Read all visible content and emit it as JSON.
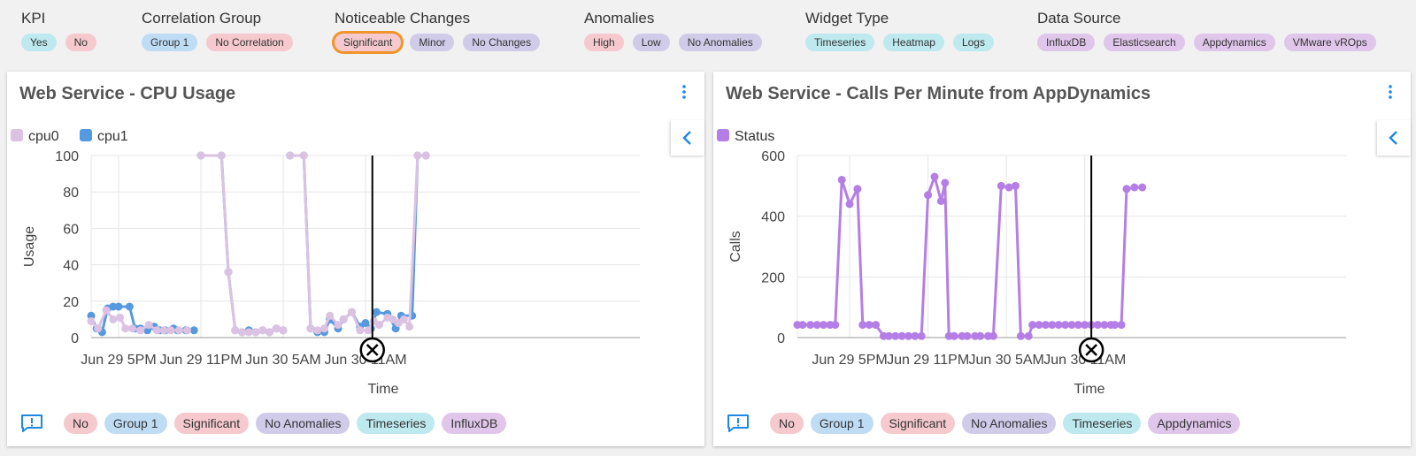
{
  "filters": [
    {
      "title": "KPI",
      "chips": [
        {
          "label": "Yes",
          "color": "cyan"
        },
        {
          "label": "No",
          "color": "pink"
        }
      ]
    },
    {
      "title": "Correlation Group",
      "chips": [
        {
          "label": "Group 1",
          "color": "blue"
        },
        {
          "label": "No Correlation",
          "color": "pink"
        }
      ]
    },
    {
      "title": "Noticeable Changes",
      "chips": [
        {
          "label": "Significant",
          "color": "pink",
          "selected": true
        },
        {
          "label": "Minor",
          "color": "purple"
        },
        {
          "label": "No Changes",
          "color": "purple"
        }
      ]
    },
    {
      "title": "Anomalies",
      "chips": [
        {
          "label": "High",
          "color": "pink"
        },
        {
          "label": "Low",
          "color": "purple"
        },
        {
          "label": "No Anomalies",
          "color": "purple"
        }
      ]
    },
    {
      "title": "Widget Type",
      "chips": [
        {
          "label": "Timeseries",
          "color": "cyan"
        },
        {
          "label": "Heatmap",
          "color": "cyan"
        },
        {
          "label": "Logs",
          "color": "cyan"
        }
      ]
    },
    {
      "title": "Data Source",
      "chips": [
        {
          "label": "InfluxDB",
          "color": "violet"
        },
        {
          "label": "Elasticsearch",
          "color": "violet"
        },
        {
          "label": "Appdynamics",
          "color": "violet"
        },
        {
          "label": "VMware vROps",
          "color": "violet"
        }
      ]
    }
  ],
  "widgets": [
    {
      "title": "Web Service - CPU Usage",
      "tags": [
        {
          "label": "No",
          "color": "pink"
        },
        {
          "label": "Group 1",
          "color": "blue"
        },
        {
          "label": "Significant",
          "color": "pink"
        },
        {
          "label": "No Anomalies",
          "color": "purple"
        },
        {
          "label": "Timeseries",
          "color": "cyan"
        },
        {
          "label": "InfluxDB",
          "color": "violet"
        }
      ],
      "chart_data": {
        "type": "line",
        "xlabel": "Time",
        "ylabel": "Usage",
        "ylim": [
          0,
          100
        ],
        "yticks": [
          0,
          20,
          40,
          60,
          80,
          100
        ],
        "xlim": [
          15,
          55
        ],
        "xticks": [
          {
            "x": 17,
            "label": "Jun 29 5PM"
          },
          {
            "x": 23,
            "label": "Jun 29 11PM"
          },
          {
            "x": 29,
            "label": "Jun 30 5AM"
          },
          {
            "x": 35,
            "label": "Jun 30 11AM"
          }
        ],
        "crosshair_x": 35.5,
        "legend": "top-left",
        "series": [
          {
            "name": "cpu1",
            "color": "#5599e0",
            "points": [
              [
                15,
                12
              ],
              [
                15.4,
                5
              ],
              [
                15.8,
                3
              ],
              [
                16.2,
                16
              ],
              [
                16.6,
                17
              ],
              [
                17,
                17
              ],
              [
                17.8,
                17
              ],
              [
                18.2,
                5
              ],
              [
                18.6,
                5
              ],
              [
                19.1,
                4
              ],
              [
                19.6,
                6
              ],
              [
                20,
                4
              ],
              [
                20.4,
                4
              ],
              [
                21,
                5
              ],
              [
                21.3,
                4
              ],
              [
                21.9,
                4
              ],
              [
                22.5,
                4
              ],
              [
                null,
                null
              ],
              [
                23,
                100
              ],
              [
                24.5,
                100
              ],
              [
                25,
                36
              ],
              [
                25.5,
                4
              ],
              [
                26,
                3
              ],
              [
                26.5,
                4
              ],
              [
                27,
                3
              ],
              [
                27.5,
                4
              ],
              [
                28,
                3
              ],
              [
                28.5,
                5
              ],
              [
                29,
                4
              ],
              [
                null,
                null
              ],
              [
                29.5,
                100
              ],
              [
                30.5,
                100
              ],
              [
                31,
                5
              ],
              [
                31.5,
                3
              ],
              [
                32,
                3
              ],
              [
                32.4,
                10
              ],
              [
                33,
                5
              ],
              [
                33.4,
                10
              ],
              [
                34,
                14
              ],
              [
                34.6,
                6
              ],
              [
                35,
                8
              ],
              [
                35.4,
                5
              ],
              [
                35.8,
                14
              ],
              [
                36.6,
                13
              ],
              [
                37.2,
                5
              ],
              [
                37.6,
                12
              ],
              [
                38.4,
                12
              ],
              [
                38.8,
                100
              ],
              [
                39.4,
                100
              ]
            ]
          },
          {
            "name": "cpu0",
            "color": "#dbc2e3",
            "points": [
              [
                15,
                9
              ],
              [
                15.5,
                5
              ],
              [
                16.1,
                15
              ],
              [
                16.6,
                10
              ],
              [
                17.1,
                11
              ],
              [
                17.5,
                5
              ],
              [
                18,
                5
              ],
              [
                18.6,
                4
              ],
              [
                19.2,
                7
              ],
              [
                19.8,
                4
              ],
              [
                20.3,
                4
              ],
              [
                20.8,
                4
              ],
              [
                21.4,
                4
              ],
              [
                22,
                4
              ],
              [
                null,
                null
              ],
              [
                23,
                100
              ],
              [
                24.5,
                100
              ],
              [
                25,
                36
              ],
              [
                25.5,
                4
              ],
              [
                26,
                3
              ],
              [
                26.5,
                3
              ],
              [
                27,
                3
              ],
              [
                27.5,
                4
              ],
              [
                28,
                3
              ],
              [
                28.5,
                5
              ],
              [
                29,
                4
              ],
              [
                null,
                null
              ],
              [
                29.5,
                100
              ],
              [
                30.5,
                100
              ],
              [
                31,
                5
              ],
              [
                31.5,
                4
              ],
              [
                32,
                5
              ],
              [
                32.4,
                12
              ],
              [
                33,
                7
              ],
              [
                33.4,
                10
              ],
              [
                34,
                14
              ],
              [
                34.6,
                4
              ],
              [
                35.2,
                4
              ],
              [
                35.6,
                9
              ],
              [
                36,
                7
              ],
              [
                36.6,
                11
              ],
              [
                37,
                10
              ],
              [
                37.4,
                8
              ],
              [
                37.8,
                10
              ],
              [
                38.2,
                6
              ],
              [
                38.8,
                100
              ],
              [
                39.4,
                100
              ]
            ]
          }
        ]
      }
    },
    {
      "title": "Web Service - Calls Per Minute from AppDynamics",
      "tags": [
        {
          "label": "No",
          "color": "pink"
        },
        {
          "label": "Group 1",
          "color": "blue"
        },
        {
          "label": "Significant",
          "color": "pink"
        },
        {
          "label": "No Anomalies",
          "color": "purple"
        },
        {
          "label": "Timeseries",
          "color": "cyan"
        },
        {
          "label": "Appdynamics",
          "color": "violet"
        }
      ],
      "chart_data": {
        "type": "line",
        "xlabel": "Time",
        "ylabel": "Calls",
        "ylim": [
          0,
          600
        ],
        "yticks": [
          0,
          200,
          400,
          600
        ],
        "xlim": [
          13,
          55
        ],
        "xticks": [
          {
            "x": 17,
            "label": "Jun 29 5PM"
          },
          {
            "x": 23,
            "label": "Jun 29 11PM"
          },
          {
            "x": 29,
            "label": "Jun 30 5AM"
          },
          {
            "x": 35,
            "label": "Jun 30 11AM"
          }
        ],
        "crosshair_x": 35.5,
        "legend": "top-left",
        "series": [
          {
            "name": "Status",
            "color": "#b57ee6",
            "points": [
              [
                13,
                42
              ],
              [
                13.4,
                42
              ],
              [
                14,
                42
              ],
              [
                14.5,
                42
              ],
              [
                15,
                42
              ],
              [
                15.5,
                42
              ],
              [
                15.9,
                42
              ],
              [
                16.4,
                520
              ],
              [
                17,
                440
              ],
              [
                17.6,
                490
              ],
              [
                18,
                42
              ],
              [
                18.5,
                42
              ],
              [
                19,
                42
              ],
              [
                19.6,
                5
              ],
              [
                20,
                5
              ],
              [
                20.5,
                5
              ],
              [
                21,
                5
              ],
              [
                21.5,
                5
              ],
              [
                22,
                5
              ],
              [
                22.5,
                5
              ],
              [
                23,
                470
              ],
              [
                23.5,
                530
              ],
              [
                24,
                450
              ],
              [
                24.3,
                510
              ],
              [
                24.6,
                5
              ],
              [
                25,
                5
              ],
              [
                25.6,
                5
              ],
              [
                26,
                5
              ],
              [
                26.6,
                5
              ],
              [
                27,
                5
              ],
              [
                27.6,
                5
              ],
              [
                28,
                5
              ],
              [
                28.6,
                500
              ],
              [
                29.2,
                495
              ],
              [
                29.7,
                500
              ],
              [
                30.1,
                5
              ],
              [
                30.7,
                5
              ],
              [
                31,
                42
              ],
              [
                31.5,
                42
              ],
              [
                32,
                42
              ],
              [
                32.5,
                42
              ],
              [
                33,
                42
              ],
              [
                33.5,
                42
              ],
              [
                34,
                42
              ],
              [
                34.5,
                42
              ],
              [
                35,
                42
              ],
              [
                35.5,
                42
              ],
              [
                36,
                42
              ],
              [
                36.5,
                42
              ],
              [
                37,
                42
              ],
              [
                37.3,
                42
              ],
              [
                37.8,
                42
              ],
              [
                38.2,
                490
              ],
              [
                38.8,
                495
              ],
              [
                39.4,
                495
              ]
            ]
          }
        ]
      }
    }
  ],
  "colors": {
    "blue": "#bfdcf5",
    "pink": "#f5c9cd",
    "purple": "#cfcbe8",
    "cyan": "#bde9ef",
    "violet": "#e0c6ea",
    "accent": "#1e88e5",
    "selected_outline": "#f0952b"
  }
}
